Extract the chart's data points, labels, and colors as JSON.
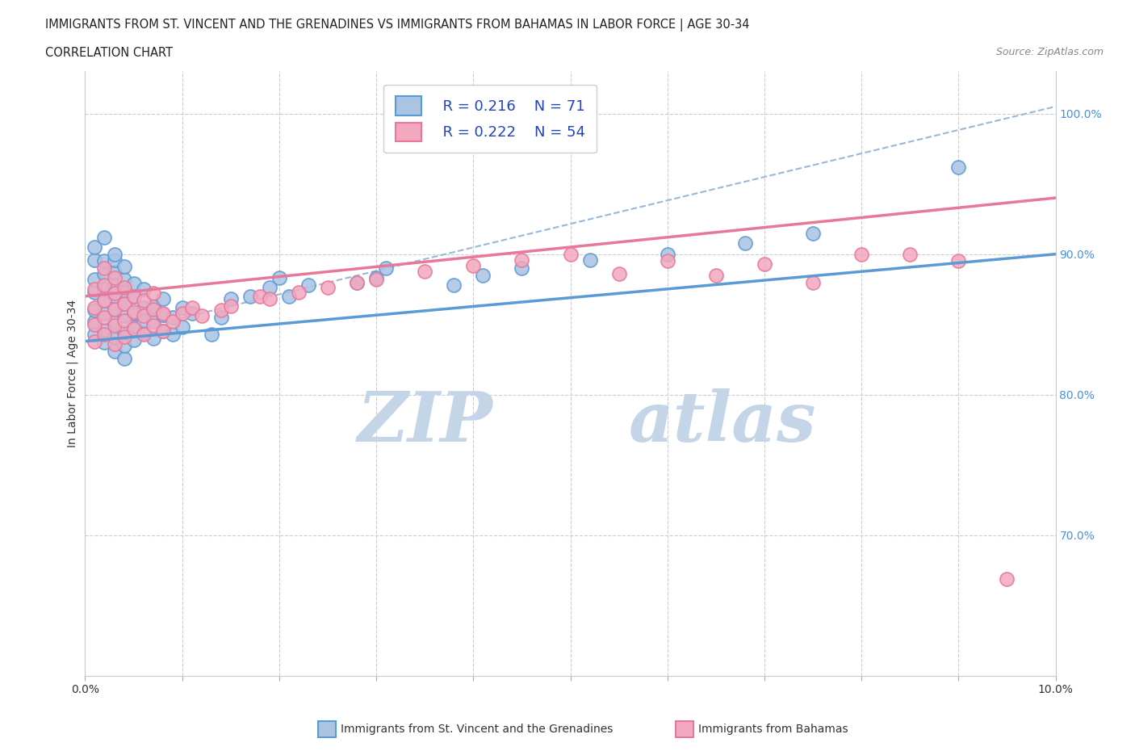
{
  "title_line1": "IMMIGRANTS FROM ST. VINCENT AND THE GRENADINES VS IMMIGRANTS FROM BAHAMAS IN LABOR FORCE | AGE 30-34",
  "title_line2": "CORRELATION CHART",
  "source_text": "Source: ZipAtlas.com",
  "ylabel": "In Labor Force | Age 30-34",
  "xlim": [
    0.0,
    0.1
  ],
  "ylim": [
    0.6,
    1.03
  ],
  "legend_r1": "R = 0.216",
  "legend_n1": "N = 71",
  "legend_r2": "R = 0.222",
  "legend_n2": "N = 54",
  "color_blue": "#aac4e2",
  "color_pink": "#f2a8be",
  "line_blue": "#5b9bd5",
  "line_pink": "#e8789a",
  "line_dash_color": "#99b8d8",
  "watermark_zip_color": "#c5d5e8",
  "watermark_atlas_color": "#c5d5e8",
  "blue_x": [
    0.001,
    0.001,
    0.001,
    0.001,
    0.001,
    0.001,
    0.001,
    0.002,
    0.002,
    0.002,
    0.002,
    0.002,
    0.002,
    0.002,
    0.002,
    0.003,
    0.003,
    0.003,
    0.003,
    0.003,
    0.003,
    0.003,
    0.003,
    0.003,
    0.004,
    0.004,
    0.004,
    0.004,
    0.004,
    0.004,
    0.004,
    0.004,
    0.005,
    0.005,
    0.005,
    0.005,
    0.005,
    0.006,
    0.006,
    0.006,
    0.006,
    0.007,
    0.007,
    0.007,
    0.008,
    0.008,
    0.008,
    0.009,
    0.009,
    0.01,
    0.01,
    0.011,
    0.013,
    0.014,
    0.015,
    0.017,
    0.019,
    0.02,
    0.021,
    0.023,
    0.028,
    0.03,
    0.031,
    0.038,
    0.041,
    0.045,
    0.052,
    0.06,
    0.068,
    0.075,
    0.09
  ],
  "blue_y": [
    0.843,
    0.852,
    0.86,
    0.873,
    0.882,
    0.896,
    0.905,
    0.837,
    0.846,
    0.858,
    0.867,
    0.875,
    0.886,
    0.895,
    0.912,
    0.831,
    0.841,
    0.852,
    0.861,
    0.87,
    0.878,
    0.887,
    0.896,
    0.9,
    0.826,
    0.835,
    0.844,
    0.856,
    0.865,
    0.874,
    0.882,
    0.891,
    0.839,
    0.849,
    0.858,
    0.87,
    0.879,
    0.844,
    0.853,
    0.862,
    0.875,
    0.84,
    0.852,
    0.863,
    0.845,
    0.857,
    0.868,
    0.843,
    0.855,
    0.848,
    0.862,
    0.858,
    0.843,
    0.855,
    0.868,
    0.87,
    0.876,
    0.883,
    0.87,
    0.878,
    0.88,
    0.883,
    0.89,
    0.878,
    0.885,
    0.89,
    0.896,
    0.9,
    0.908,
    0.915,
    0.962
  ],
  "pink_x": [
    0.001,
    0.001,
    0.001,
    0.001,
    0.002,
    0.002,
    0.002,
    0.002,
    0.002,
    0.003,
    0.003,
    0.003,
    0.003,
    0.003,
    0.004,
    0.004,
    0.004,
    0.004,
    0.005,
    0.005,
    0.005,
    0.006,
    0.006,
    0.006,
    0.007,
    0.007,
    0.007,
    0.008,
    0.008,
    0.009,
    0.01,
    0.011,
    0.012,
    0.014,
    0.015,
    0.018,
    0.019,
    0.022,
    0.025,
    0.028,
    0.03,
    0.035,
    0.04,
    0.045,
    0.05,
    0.055,
    0.06,
    0.065,
    0.07,
    0.075,
    0.08,
    0.085,
    0.09,
    0.095
  ],
  "pink_y": [
    0.838,
    0.85,
    0.862,
    0.875,
    0.843,
    0.855,
    0.867,
    0.878,
    0.89,
    0.836,
    0.849,
    0.861,
    0.872,
    0.883,
    0.841,
    0.853,
    0.865,
    0.876,
    0.847,
    0.859,
    0.87,
    0.843,
    0.856,
    0.867,
    0.849,
    0.861,
    0.872,
    0.845,
    0.858,
    0.852,
    0.858,
    0.862,
    0.856,
    0.86,
    0.863,
    0.87,
    0.868,
    0.873,
    0.876,
    0.88,
    0.882,
    0.888,
    0.892,
    0.896,
    0.9,
    0.886,
    0.895,
    0.885,
    0.893,
    0.88,
    0.9,
    0.9,
    0.895,
    0.669
  ],
  "blue_line_x0": 0.0,
  "blue_line_x1": 0.1,
  "blue_line_y0": 0.838,
  "blue_line_y1": 0.9,
  "pink_line_x0": 0.0,
  "pink_line_x1": 0.1,
  "pink_line_y0": 0.87,
  "pink_line_y1": 0.94,
  "dash_line_x0": 0.0,
  "dash_line_x1": 0.1,
  "dash_line_y0": 0.838,
  "dash_line_y1": 1.005
}
